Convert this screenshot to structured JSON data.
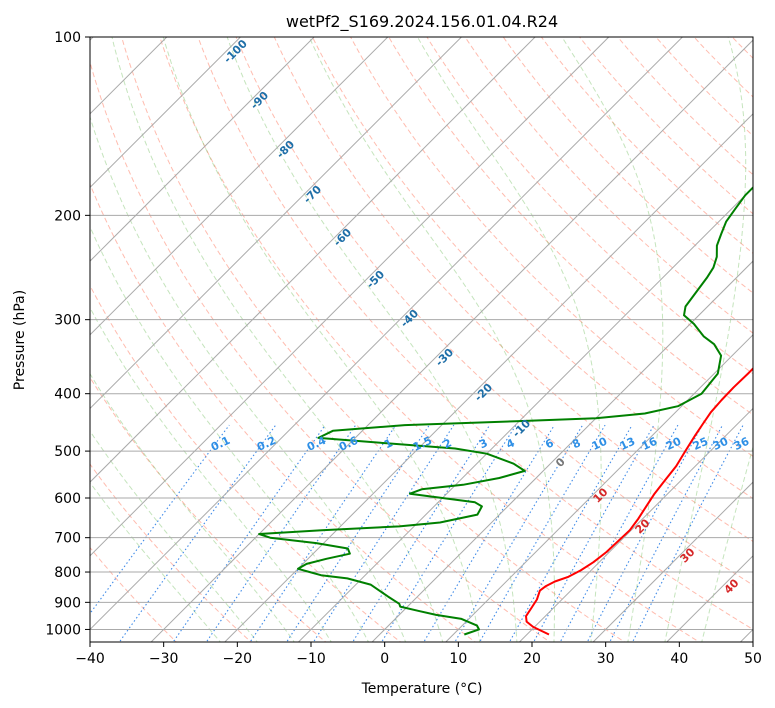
{
  "chart_data": {
    "type": "line",
    "title": "wetPf2_S169.2024.156.01.04.R24",
    "xlabel": "Temperature (°C)",
    "ylabel": "Pressure (hPa)",
    "xlim": [
      -40,
      50
    ],
    "ylim": [
      1050,
      100
    ],
    "y_scale": "log",
    "grid": true,
    "x_ticks": [
      -40,
      -30,
      -20,
      -10,
      0,
      10,
      20,
      30,
      40,
      50
    ],
    "y_ticks": [
      100,
      200,
      300,
      400,
      500,
      600,
      700,
      800,
      900,
      1000
    ],
    "x_tick_labels": [
      "−40",
      "−30",
      "−20",
      "−10",
      "0",
      "10",
      "20",
      "30",
      "40",
      "50"
    ],
    "y_tick_labels": [
      "100",
      "200",
      "300",
      "400",
      "500",
      "600",
      "700",
      "800",
      "900",
      "1000"
    ],
    "series": [
      {
        "role": "temperature",
        "color": "#ff0000",
        "p": [
          1020,
          990,
          970,
          950,
          920,
          890,
          860,
          845,
          830,
          815,
          795,
          770,
          740,
          710,
          680,
          650,
          620,
          590,
          560,
          530,
          500,
          470,
          450,
          430,
          410,
          390,
          370,
          350,
          330,
          310,
          295,
          280,
          265,
          250,
          235,
          220,
          205,
          190,
          180,
          172,
          165,
          160,
          155,
          150,
          145,
          140,
          135,
          130,
          125,
          120,
          115,
          110,
          105,
          100
        ],
        "t": [
          23.0,
          19.8,
          18.2,
          17.4,
          17.0,
          16.6,
          15.8,
          16.0,
          16.6,
          17.8,
          18.6,
          19.2,
          19.6,
          19.7,
          19.8,
          19.4,
          18.8,
          18.2,
          17.8,
          17.4,
          16.6,
          15.8,
          15.3,
          14.8,
          14.6,
          14.5,
          14.6,
          14.6,
          14.4,
          14.2,
          13.0,
          11.7,
          10.2,
          8.8,
          7.2,
          5.5,
          3.5,
          1.8,
          0.9,
          1.0,
          2.6,
          4.4,
          6.6,
          9.0,
          11.2,
          13.2,
          14.8,
          16.4,
          17.8,
          19.2,
          20.4,
          21.7,
          23.1,
          24.4
        ]
      },
      {
        "role": "dewpoint",
        "color": "#008000",
        "p": [
          1020,
          1000,
          985,
          960,
          945,
          930,
          915,
          905,
          880,
          860,
          840,
          820,
          810,
          800,
          790,
          775,
          760,
          745,
          730,
          715,
          700,
          690,
          680,
          670,
          660,
          640,
          620,
          610,
          600,
          590,
          580,
          570,
          555,
          540,
          525,
          505,
          495,
          485,
          475,
          462,
          452,
          445,
          440,
          432,
          420,
          400,
          370,
          345,
          330,
          320,
          305,
          295,
          285,
          270,
          255,
          245,
          235,
          225,
          215,
          205,
          195,
          185,
          175,
          168,
          162,
          158,
          152,
          148,
          142,
          130,
          118,
          110,
          100
        ],
        "t": [
          11.5,
          12.8,
          12.0,
          9.0,
          5.0,
          2.0,
          -1.0,
          -1.5,
          -4.0,
          -6.0,
          -8.0,
          -12.0,
          -16.0,
          -18.0,
          -20.0,
          -19.5,
          -17.5,
          -15.0,
          -16.0,
          -21.0,
          -28.0,
          -30.0,
          -22.0,
          -12.0,
          -7.0,
          -3.0,
          -3.5,
          -5.0,
          -10.0,
          -15.0,
          -14.0,
          -9.0,
          -5.0,
          -2.5,
          -5.0,
          -10.0,
          -15.0,
          -25.0,
          -35.0,
          -34.0,
          -25.0,
          -10.0,
          0.0,
          6.0,
          9.5,
          11.0,
          10.5,
          8.5,
          6.0,
          3.5,
          0.5,
          -2.0,
          -3.0,
          -3.5,
          -4.0,
          -4.5,
          -5.5,
          -7.0,
          -8.0,
          -9.0,
          -9.5,
          -10.0,
          -10.0,
          -9.0,
          -9.5,
          -12.0,
          -15.0,
          -16.5,
          -17.5,
          -19.0,
          -21.5,
          -22.0,
          -22.5
        ]
      }
    ],
    "dry_adiabat_labels": [
      "-100",
      "-90",
      "-80",
      "-70",
      "-60",
      "-50",
      "-40",
      "-30",
      "-20",
      "-10",
      "0",
      "10",
      "20",
      "30",
      "40"
    ],
    "mixing_ratio_labels": [
      "0.1",
      "0.2",
      "0.4",
      "0.6",
      "1",
      "1.5",
      "2",
      "3",
      "4",
      "6",
      "8",
      "10",
      "13",
      "16",
      "20",
      "25",
      "30",
      "36"
    ]
  },
  "colors": {
    "temperature": "#ff0000",
    "dewpoint": "#008000",
    "isobar": "#aaaaaa",
    "isotherm": "#aaaaaa",
    "dry_adiabat": "#ff6a4d",
    "moist_adiabat": "#6dbb5a",
    "mixing_ratio": "#1f77e4",
    "label_dry": "#1f6fa8",
    "label_mix": "#2e8fe6",
    "label_warm": "#d62728",
    "label_zero": "#777777"
  }
}
